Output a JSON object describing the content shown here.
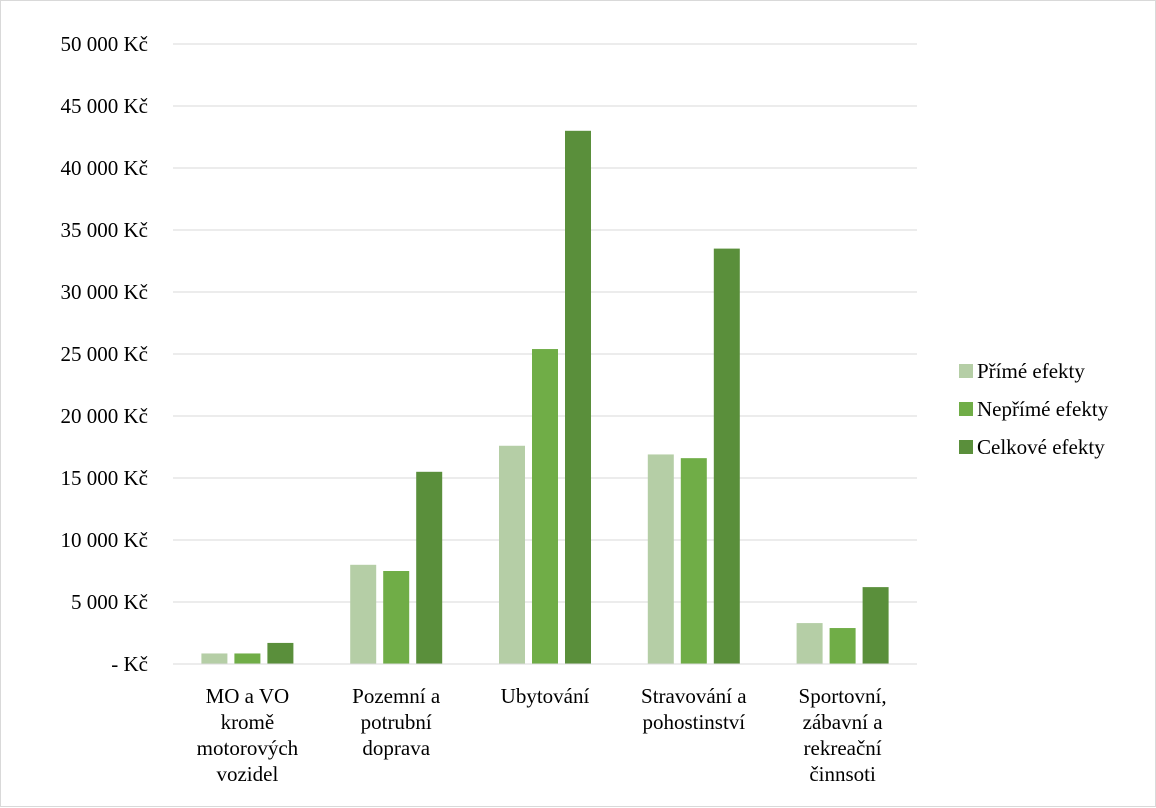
{
  "chart_data": {
    "type": "bar",
    "categories": [
      [
        "MO a VO",
        "kromě",
        "motorových",
        "vozidel"
      ],
      [
        "Pozemní a",
        "potrubní",
        "doprava"
      ],
      [
        "Ubytování"
      ],
      [
        "Stravování a",
        "pohostinství"
      ],
      [
        "Sportovní,",
        "zábavní a",
        "rekreační",
        "činnsoti"
      ]
    ],
    "series": [
      {
        "name": "Přímé efekty",
        "color": "#b5cea6",
        "values": [
          850,
          8000,
          17600,
          16900,
          3300
        ]
      },
      {
        "name": "Nepřímé efekty",
        "color": "#70ad47",
        "values": [
          850,
          7500,
          25400,
          16600,
          2900
        ]
      },
      {
        "name": "Celkové efekty",
        "color": "#5a8f3b",
        "values": [
          1700,
          15500,
          43000,
          33500,
          6200
        ]
      }
    ],
    "y_ticks": [
      {
        "value": 0,
        "label": "-   Kč"
      },
      {
        "value": 5000,
        "label": "5 000 Kč"
      },
      {
        "value": 10000,
        "label": "10 000 Kč"
      },
      {
        "value": 15000,
        "label": "15 000 Kč"
      },
      {
        "value": 20000,
        "label": "20 000 Kč"
      },
      {
        "value": 25000,
        "label": "25 000 Kč"
      },
      {
        "value": 30000,
        "label": "30 000 Kč"
      },
      {
        "value": 35000,
        "label": "35 000 Kč"
      },
      {
        "value": 40000,
        "label": "40 000 Kč"
      },
      {
        "value": 45000,
        "label": "45 000 Kč"
      },
      {
        "value": 50000,
        "label": "50 000 Kč"
      }
    ],
    "ylim": [
      0,
      50000
    ],
    "grid": true,
    "gridline_color": "#d9d9d9",
    "legend_position": "right",
    "title": "",
    "xlabel": "",
    "ylabel": ""
  }
}
